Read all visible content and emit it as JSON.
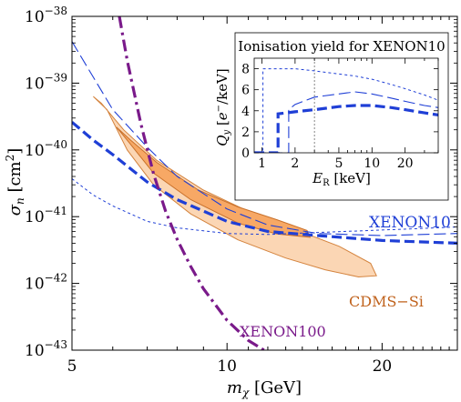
{
  "chart_data": [
    {
      "type": "line",
      "xlabel": "m_χ [GeV]",
      "ylabel": "σ_n [cm²]",
      "x_scale": "log",
      "y_scale": "log",
      "xlim": [
        5,
        28
      ],
      "ylim": [
        1e-43,
        1e-38
      ],
      "x_ticks": [
        5,
        10,
        20
      ],
      "x_tick_labels": [
        "5",
        "10",
        "20"
      ],
      "y_ticks": [
        1e-43,
        1e-42,
        1e-41,
        1e-40,
        1e-39,
        1e-38
      ],
      "y_tick_labels": [
        {
          "base": "10",
          "exp": "−43"
        },
        {
          "base": "10",
          "exp": "−42"
        },
        {
          "base": "10",
          "exp": "−41"
        },
        {
          "base": "10",
          "exp": "−40"
        },
        {
          "base": "10",
          "exp": "−39"
        },
        {
          "base": "10",
          "exp": "−38"
        }
      ],
      "regions": [
        {
          "name": "CDMS−Si",
          "level": "outer",
          "color": "#fbd6b4",
          "edge": "#d4833d",
          "points": [
            [
              5.5,
              6.3e-40
            ],
            [
              5.85,
              4e-40
            ],
            [
              6.4,
              1e-40
            ],
            [
              7.2,
              3e-41
            ],
            [
              8.5,
              1.1e-41
            ],
            [
              10.5,
              4.5e-42
            ],
            [
              13.0,
              2.4e-42
            ],
            [
              15.5,
              1.6e-42
            ],
            [
              18.0,
              1.25e-42
            ],
            [
              19.5,
              1.3e-42
            ],
            [
              19.0,
              2e-42
            ],
            [
              16.5,
              3.6e-42
            ],
            [
              13.5,
              6.5e-42
            ],
            [
              11.0,
              1.2e-41
            ],
            [
              9.0,
              2.5e-41
            ],
            [
              7.3,
              7e-41
            ],
            [
              6.3,
              2e-40
            ],
            [
              5.7,
              5e-40
            ],
            [
              5.5,
              6.3e-40
            ]
          ]
        },
        {
          "name": "CDMS−Si",
          "level": "inner",
          "color": "#f7a865",
          "edge": "#c8702a",
          "points": [
            [
              6.1,
              2.2e-40
            ],
            [
              6.45,
              1.3e-40
            ],
            [
              7.2,
              4.5e-41
            ],
            [
              8.5,
              1.8e-41
            ],
            [
              10.5,
              8e-42
            ],
            [
              12.5,
              5.5e-42
            ],
            [
              14.5,
              4.9e-42
            ],
            [
              14.3,
              6.2e-42
            ],
            [
              12.5,
              9e-42
            ],
            [
              10.5,
              1.4e-41
            ],
            [
              8.8,
              2.5e-41
            ],
            [
              7.3,
              6.5e-41
            ],
            [
              6.5,
              1.4e-40
            ],
            [
              6.1,
              2.2e-40
            ]
          ]
        }
      ],
      "series": [
        {
          "name": "XENON10",
          "style": "thick-dashed",
          "color": "#1f3fd6",
          "x": [
            5.0,
            5.5,
            6.0,
            7.0,
            8.0,
            10.0,
            12.0,
            15.0,
            20.0,
            28.0
          ],
          "y": [
            2.6e-40,
            1.4e-40,
            8.5e-41,
            3.3e-41,
            1.8e-41,
            8.5e-42,
            6e-42,
            5.2e-42,
            4.4e-42,
            4e-42
          ]
        },
        {
          "style": "thin-long-dashed",
          "color": "#1f3fd6",
          "x": [
            5.0,
            6.0,
            7.0,
            8.0,
            10.0,
            12.0,
            15.0,
            20.0,
            28.0
          ],
          "y": [
            4.2e-39,
            4e-40,
            1.1e-40,
            4e-41,
            1.3e-41,
            7.5e-42,
            5.6e-42,
            5.2e-42,
            5.6e-42
          ]
        },
        {
          "style": "thin-short-dashed",
          "color": "#1f3fd6",
          "x": [
            5.0,
            5.5,
            6.0,
            7.0,
            8.0,
            10.0,
            12.0,
            15.0,
            20.0,
            28.0
          ],
          "y": [
            3.7e-41,
            2.1e-41,
            1.45e-41,
            8.5e-42,
            6.8e-42,
            5.6e-42,
            5.4e-42,
            5.8e-42,
            6.3e-42,
            7e-42
          ]
        },
        {
          "name": "XENON100",
          "style": "dash-dot",
          "color": "#7a1a8a",
          "x": [
            6.18,
            6.4,
            6.8,
            7.2,
            7.6,
            8.0,
            8.5,
            9.0,
            10.0,
            11.0,
            11.8
          ],
          "y": [
            1e-38,
            2.2e-39,
            2.5e-40,
            4.4e-41,
            1.2e-41,
            4.6e-42,
            1.8e-42,
            8.3e-43,
            2.8e-43,
            1.4e-43,
            1e-43
          ]
        }
      ],
      "annotations": [
        "XENON10",
        "CDMS−Si",
        "XENON100"
      ]
    },
    {
      "type": "line",
      "title": "Ionisation yield for XENON10",
      "xlabel": "E_R [keV]",
      "ylabel": "Q_y [e⁻/keV]",
      "x_scale": "log",
      "xlim": [
        0.85,
        40
      ],
      "ylim": [
        0,
        9
      ],
      "x_ticks": [
        1,
        2,
        5,
        10,
        20
      ],
      "x_tick_labels": [
        "1",
        "2",
        "5",
        "10",
        "20"
      ],
      "y_ticks": [
        0,
        2,
        4,
        6,
        8
      ],
      "y_tick_labels": [
        "0",
        "2",
        "4",
        "6",
        "8"
      ],
      "vertical_marker_x": 3.0,
      "series": [
        {
          "style": "thick-dashed",
          "color": "#1f3fd6",
          "x": [
            0.85,
            1.4,
            1.4,
            2.0,
            3.0,
            5.0,
            7.0,
            10.0,
            15.0,
            20.0,
            30.0,
            40.0
          ],
          "y": [
            0.0,
            0.0,
            3.7,
            3.9,
            4.1,
            4.4,
            4.5,
            4.5,
            4.3,
            4.1,
            3.8,
            3.6
          ]
        },
        {
          "style": "thin-long-dashed",
          "color": "#1f3fd6",
          "x": [
            0.85,
            1.75,
            1.75,
            2.0,
            3.0,
            5.0,
            7.0,
            10.0,
            15.0,
            20.0,
            30.0,
            40.0
          ],
          "y": [
            0.0,
            0.0,
            4.1,
            4.6,
            5.3,
            5.6,
            5.8,
            5.6,
            5.2,
            4.9,
            4.5,
            4.3
          ]
        },
        {
          "style": "thin-short-dashed",
          "color": "#1f3fd6",
          "x": [
            0.85,
            1.02,
            1.02,
            1.5,
            2.0,
            3.0,
            5.0,
            7.0,
            10.0,
            15.0,
            20.0,
            30.0,
            40.0
          ],
          "y": [
            0.0,
            0.0,
            8.0,
            8.0,
            8.0,
            7.8,
            7.5,
            7.3,
            7.0,
            6.5,
            6.1,
            5.5,
            5.0
          ]
        }
      ]
    }
  ]
}
